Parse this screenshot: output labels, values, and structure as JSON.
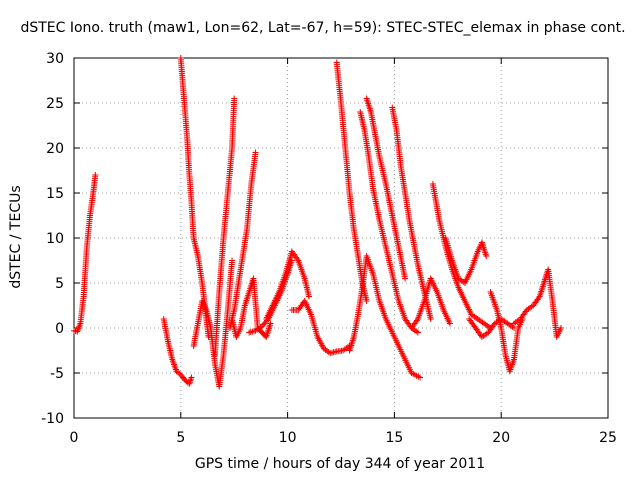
{
  "chart_data": {
    "type": "scatter",
    "title": "dSTEC Iono. truth (maw1, Lon=62, Lat=-67, h=59): STEC-STEC_elemax in phase cont.",
    "xlabel": "GPS time / hours of day 344 of year 2011",
    "ylabel": "dSTEC  / TECUs",
    "xlim": [
      0,
      25
    ],
    "ylim": [
      -10,
      30
    ],
    "xticks": [
      0,
      5,
      10,
      15,
      20,
      25
    ],
    "yticks": [
      -10,
      -5,
      0,
      5,
      10,
      15,
      20,
      25,
      30
    ],
    "grid": true,
    "marker": "plus",
    "color": "#ff0000",
    "series": [
      {
        "x": [
          0.0,
          0.15,
          0.3,
          0.45,
          0.6,
          0.75,
          0.9,
          1.0
        ],
        "y": [
          -0.3,
          -0.4,
          0.5,
          3.5,
          9.0,
          12.5,
          15.0,
          17.0
        ]
      },
      {
        "x": [
          4.2,
          4.4,
          4.6,
          4.8,
          5.0,
          5.2,
          5.4,
          5.5
        ],
        "y": [
          1.0,
          -1.5,
          -3.5,
          -4.8,
          -5.2,
          -5.8,
          -6.2,
          -5.5
        ]
      },
      {
        "x": [
          5.0,
          5.1,
          5.2,
          5.3,
          5.4,
          5.5,
          5.6,
          5.8,
          6.0,
          6.2,
          6.3
        ],
        "y": [
          30.0,
          27.0,
          24.0,
          21.0,
          17.0,
          14.0,
          10.0,
          8.0,
          5.0,
          1.0,
          -1.0
        ]
      },
      {
        "x": [
          5.6,
          5.8,
          6.0,
          6.2,
          6.4,
          6.6,
          6.8,
          7.0,
          7.2,
          7.4
        ],
        "y": [
          -2.0,
          0.5,
          3.0,
          2.0,
          0.0,
          -4.0,
          -6.5,
          -3.0,
          2.0,
          7.5
        ]
      },
      {
        "x": [
          6.6,
          6.8,
          7.0,
          7.2,
          7.4,
          7.5
        ],
        "y": [
          -3.0,
          4.0,
          10.0,
          15.0,
          20.0,
          25.5
        ]
      },
      {
        "x": [
          7.3,
          7.5,
          7.7,
          7.9,
          8.1,
          8.3,
          8.5
        ],
        "y": [
          0.0,
          2.0,
          5.0,
          8.0,
          11.0,
          16.0,
          19.5
        ]
      },
      {
        "x": [
          7.4,
          7.6,
          7.8,
          8.0,
          8.2,
          8.4,
          8.6,
          8.8,
          9.0,
          9.2
        ],
        "y": [
          1.0,
          -1.0,
          0.0,
          2.5,
          4.0,
          5.5,
          0.0,
          -0.5,
          -1.0,
          0.5
        ]
      },
      {
        "x": [
          8.2,
          8.5,
          8.8,
          9.1,
          9.4,
          9.7,
          10.0,
          10.2
        ],
        "y": [
          -0.5,
          -0.3,
          0.2,
          1.0,
          2.5,
          4.0,
          6.0,
          7.5
        ]
      },
      {
        "x": [
          9.0,
          9.3,
          9.6,
          9.9,
          10.2,
          10.5,
          10.8,
          11.0
        ],
        "y": [
          1.0,
          2.5,
          4.0,
          6.0,
          8.5,
          7.5,
          5.5,
          3.5
        ]
      },
      {
        "x": [
          10.2,
          10.5,
          10.8,
          11.1,
          11.4,
          11.7,
          12.0,
          12.3,
          12.6,
          12.9
        ],
        "y": [
          2.0,
          2.0,
          3.0,
          1.5,
          -1.0,
          -2.3,
          -2.8,
          -2.6,
          -2.5,
          -2.0
        ]
      },
      {
        "x": [
          12.3,
          12.5,
          12.7,
          12.9,
          13.1,
          13.3,
          13.5,
          13.7
        ],
        "y": [
          29.5,
          25.0,
          20.0,
          15.0,
          11.0,
          8.0,
          5.0,
          3.0
        ]
      },
      {
        "x": [
          12.9,
          13.1,
          13.3,
          13.5,
          13.7,
          14.0,
          14.3,
          14.6,
          15.0,
          15.4,
          15.8,
          16.2
        ],
        "y": [
          -2.5,
          -1.0,
          1.5,
          4.5,
          8.0,
          6.0,
          3.0,
          1.0,
          -1.0,
          -3.0,
          -5.0,
          -5.5
        ]
      },
      {
        "x": [
          13.4,
          13.6,
          13.8,
          14.0,
          14.3,
          14.6,
          14.9,
          15.2,
          15.5,
          15.8,
          16.1
        ],
        "y": [
          24.0,
          22.0,
          19.0,
          15.5,
          12.0,
          9.0,
          6.0,
          3.0,
          1.0,
          0.0,
          -0.5
        ]
      },
      {
        "x": [
          13.7,
          13.9,
          14.1,
          14.3,
          14.6,
          14.9,
          15.2,
          15.5
        ],
        "y": [
          25.5,
          24.0,
          21.5,
          19.0,
          16.0,
          12.5,
          9.0,
          5.5
        ]
      },
      {
        "x": [
          14.9,
          15.1,
          15.3,
          15.5,
          15.7,
          15.9,
          16.1,
          16.3,
          16.5,
          16.7
        ],
        "y": [
          24.5,
          22.0,
          18.0,
          15.0,
          12.0,
          9.5,
          7.0,
          5.0,
          3.0,
          1.0
        ]
      },
      {
        "x": [
          15.8,
          16.1,
          16.4,
          16.7,
          17.0,
          17.3,
          17.6
        ],
        "y": [
          0.0,
          1.0,
          3.0,
          5.5,
          4.0,
          2.0,
          0.5
        ]
      },
      {
        "x": [
          16.8,
          17.1,
          17.4,
          17.7,
          18.0,
          18.3,
          18.6,
          18.9,
          19.2,
          19.5
        ],
        "y": [
          16.0,
          12.0,
          9.0,
          6.5,
          4.5,
          3.0,
          1.5,
          1.0,
          0.5,
          0.0
        ]
      },
      {
        "x": [
          17.4,
          17.7,
          18.0,
          18.3,
          18.6,
          18.9,
          19.1,
          19.3
        ],
        "y": [
          10.0,
          7.5,
          5.5,
          5.0,
          6.5,
          8.5,
          9.5,
          8.0
        ]
      },
      {
        "x": [
          18.5,
          18.8,
          19.1,
          19.4,
          19.7,
          20.0,
          20.3,
          20.6
        ],
        "y": [
          1.0,
          0.0,
          -1.0,
          -0.5,
          0.5,
          1.0,
          0.5,
          0.0
        ]
      },
      {
        "x": [
          19.5,
          19.8,
          20.0,
          20.2,
          20.4,
          20.6,
          20.8,
          21.0
        ],
        "y": [
          4.0,
          2.0,
          0.0,
          -3.0,
          -4.8,
          -3.5,
          0.0,
          1.0
        ]
      },
      {
        "x": [
          20.6,
          20.9,
          21.2,
          21.5,
          21.8,
          22.0,
          22.2,
          22.4,
          22.6,
          22.8
        ],
        "y": [
          0.5,
          1.0,
          2.0,
          2.5,
          3.5,
          5.0,
          6.5,
          3.0,
          -1.0,
          0.0
        ]
      }
    ]
  }
}
